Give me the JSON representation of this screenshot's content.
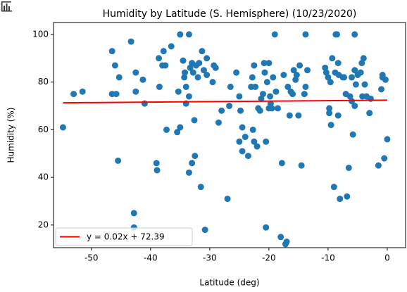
{
  "chart_data": {
    "type": "scatter",
    "title": "Humidity by Latitude (S. Hemisphere) (10/23/2020)",
    "x_label": "Latitude (deg)",
    "y_label": "Humidity (%)",
    "xlim": [
      -56.4,
      3.1
    ],
    "ylim": [
      10.5,
      105
    ],
    "xticks": [
      -50,
      -40,
      -30,
      -20,
      -10,
      0
    ],
    "yticks": [
      20,
      40,
      60,
      80,
      100
    ],
    "legend": "lower left",
    "series": [
      {
        "color": "#1f77b4",
        "x": [
          -54.8,
          -53,
          -51.5,
          -46.5,
          -46.5,
          -46,
          -45.8,
          -45.5,
          -45.3,
          -43.3,
          -42.8,
          -42.8,
          -42.5,
          -42.5,
          -41.3,
          -41,
          -39,
          -38.9,
          -38.6,
          -38.5,
          -38,
          -37.8,
          -37.5,
          -37.3,
          -36.5,
          -35.5,
          -35.3,
          -35,
          -35,
          -34.5,
          -34.3,
          -34,
          -34,
          -34.2,
          -33.5,
          -33.5,
          -33.5,
          -33.3,
          -33,
          -33,
          -32.8,
          -32.5,
          -32.6,
          -32.3,
          -32,
          -31.8,
          -31.5,
          -31.3,
          -31,
          -30.8,
          -30.5,
          -30.5,
          -29.5,
          -29.3,
          -29,
          -28.5,
          -28,
          -27,
          -26.7,
          -26.5,
          -25.5,
          -25,
          -25,
          -24.8,
          -24.5,
          -24.5,
          -24,
          -23.5,
          -23,
          -22.8,
          -22.7,
          -22.5,
          -22.5,
          -22.3,
          -22,
          -21.8,
          -21.5,
          -21.3,
          -21,
          -20.8,
          -20.7,
          -20.5,
          -20.5,
          -20.3,
          -20,
          -20,
          -19.8,
          -19.7,
          -19.5,
          -19.3,
          -19,
          -18.8,
          -18.5,
          -18,
          -17.8,
          -17.5,
          -17.2,
          -17,
          -16.8,
          -16.5,
          -16.3,
          -16,
          -15.8,
          -15.5,
          -15.3,
          -15,
          -14.8,
          -14.5,
          -14,
          -13.8,
          -13.8,
          -13.5,
          -10.5,
          -10.3,
          -10,
          -9.8,
          -9.8,
          -9.6,
          -9.5,
          -9.3,
          -9,
          -8.8,
          -8.7,
          -8.5,
          -8.3,
          -8.3,
          -8.2,
          -8,
          -7.5,
          -7.3,
          -7,
          -6.8,
          -6.5,
          -6.3,
          -6,
          -6,
          -5.8,
          -5.5,
          -5.5,
          -5.5,
          -5.3,
          -5,
          -4.5,
          -4.3,
          -4.2,
          -4,
          -3.8,
          -3.5,
          -3,
          -2.8,
          -1.5,
          -1,
          -0.8,
          -0.8,
          -0.5,
          -0.3,
          0
        ],
        "values": [
          61,
          75,
          76,
          93,
          75,
          87,
          75,
          47,
          82,
          97,
          25,
          19,
          84,
          76,
          81,
          71,
          46,
          43,
          90,
          78,
          87,
          93,
          87,
          60,
          95,
          59,
          76,
          61,
          100,
          89,
          82,
          78,
          71,
          84,
          100,
          74,
          42,
          86,
          88,
          46,
          84,
          49,
          64,
          87,
          82,
          88,
          36,
          93,
          85,
          18,
          90,
          83,
          80,
          87,
          86,
          63,
          68,
          31,
          70,
          78,
          84,
          74,
          55,
          68,
          61,
          51,
          57,
          49,
          78,
          82,
          60,
          55,
          87,
          78,
          53,
          69,
          68,
          73,
          75,
          88,
          84,
          55,
          19,
          80,
          88,
          69,
          74,
          71,
          69,
          82,
          100,
          76,
          69,
          15,
          46,
          83,
          12,
          13,
          78,
          66,
          76,
          75,
          85,
          81,
          83,
          66,
          87,
          45,
          75,
          100,
          78,
          85,
          86,
          84,
          82,
          69,
          67,
          80,
          62,
          90,
          36,
          84,
          100,
          100,
          88,
          66,
          83,
          31,
          82,
          82,
          75,
          32,
          44,
          74,
          72,
          82,
          58,
          100,
          85,
          70,
          79,
          83,
          84,
          88,
          74,
          90,
          79,
          74,
          67,
          73,
          45,
          77,
          83,
          82,
          48,
          81,
          56
        ]
      }
    ],
    "fit": {
      "name": "y = 0.02x + 72.39",
      "color": "#ff0000",
      "x": [
        -54.8,
        0
      ],
      "values": [
        71.3,
        72.4
      ]
    }
  }
}
